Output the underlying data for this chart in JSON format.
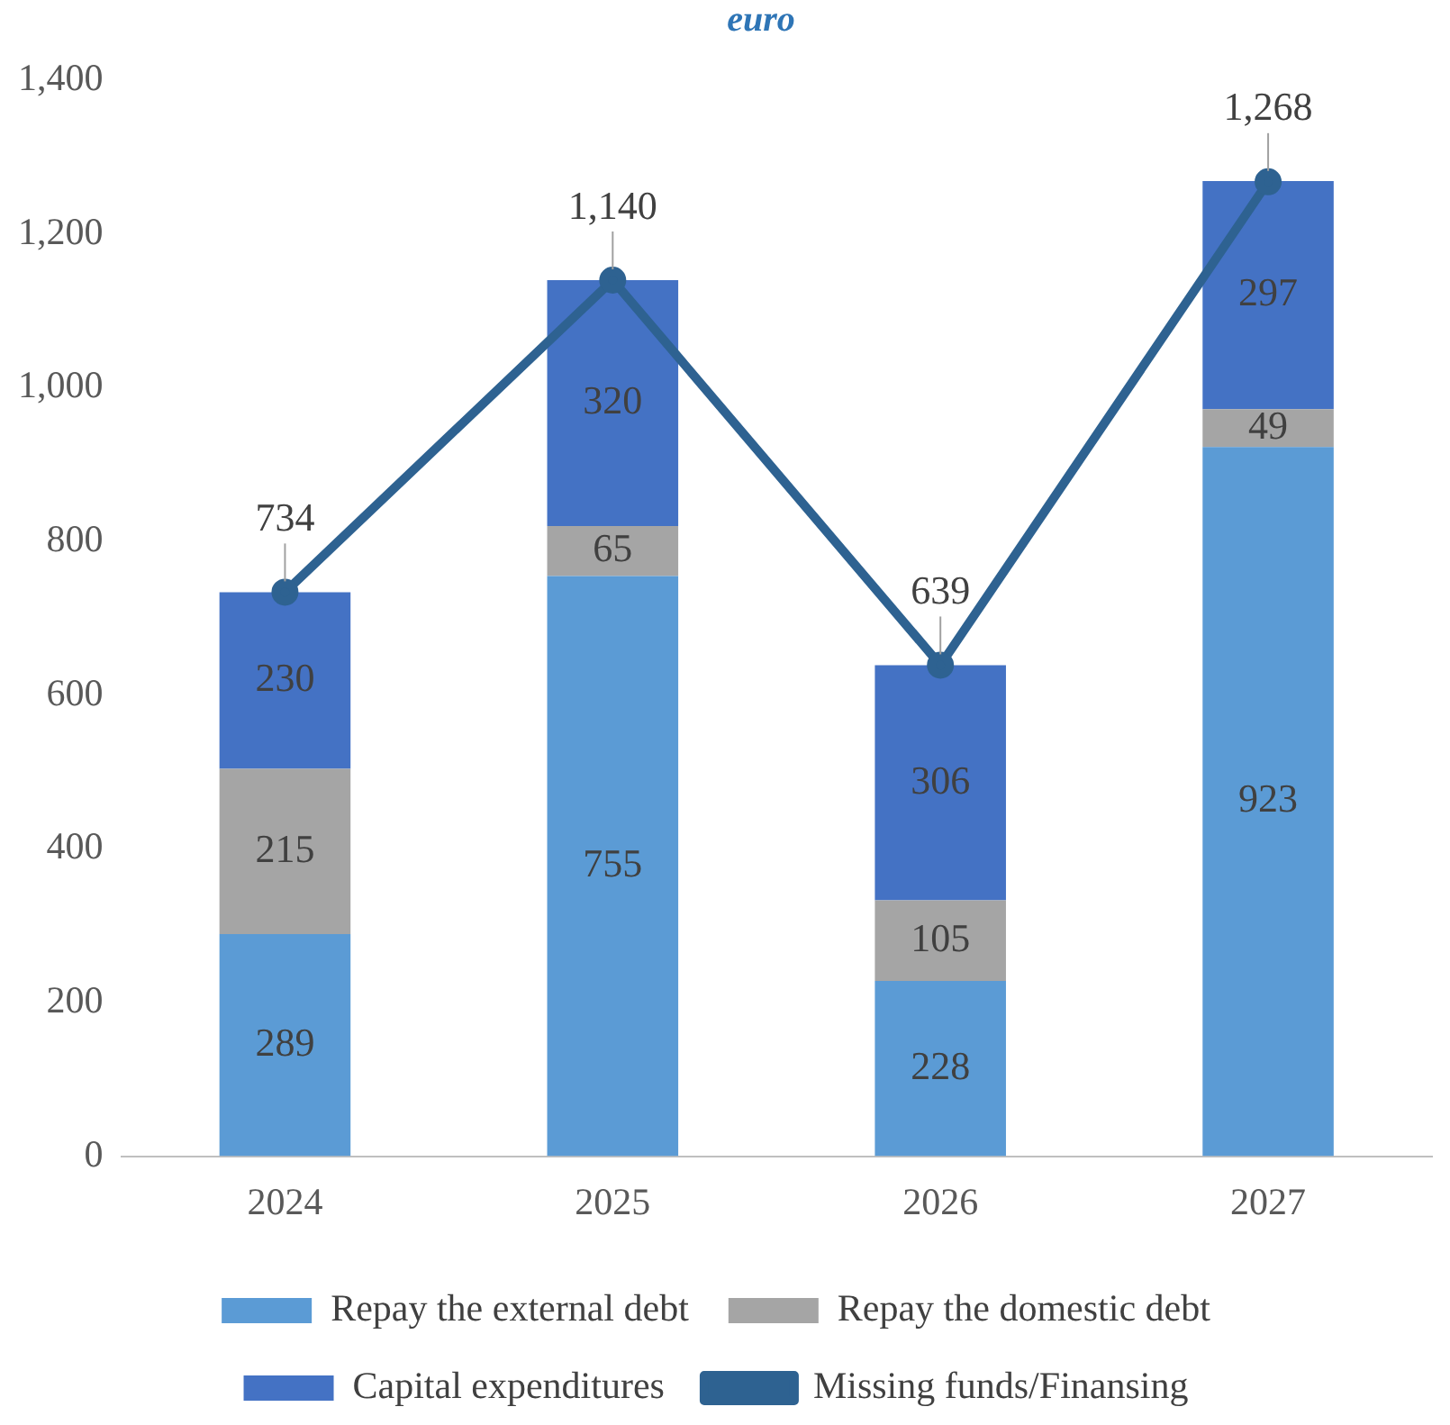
{
  "chart_data": {
    "type": "bar",
    "title": "euro",
    "stacked": true,
    "categories": [
      "2024",
      "2025",
      "2026",
      "2027"
    ],
    "series": [
      {
        "name": "Repay the external debt",
        "color": "#5b9bd5",
        "values": [
          289,
          755,
          228,
          923
        ],
        "value_labels": [
          "289",
          "755",
          "228",
          "923"
        ]
      },
      {
        "name": "Repay the domestic debt",
        "color": "#a5a5a5",
        "values": [
          215,
          65,
          105,
          49
        ],
        "value_labels": [
          "215",
          "65",
          "105",
          "49"
        ]
      },
      {
        "name": "Capital expenditures",
        "color": "#4472c4",
        "values": [
          230,
          320,
          306,
          297
        ],
        "value_labels": [
          "230",
          "320",
          "306",
          "297"
        ]
      },
      {
        "name": "Missing funds/Finansing",
        "type": "line",
        "color": "#2e6291",
        "values": [
          734,
          1140,
          639,
          1268
        ],
        "marker": "circle",
        "value_labels": [
          "734",
          "1,140",
          "639",
          "1,268"
        ]
      }
    ],
    "ylim": [
      0,
      1400
    ],
    "yticks": [
      {
        "value": 0,
        "label": "0"
      },
      {
        "value": 200,
        "label": "200"
      },
      {
        "value": 400,
        "label": "400"
      },
      {
        "value": 600,
        "label": "600"
      },
      {
        "value": 800,
        "label": "800"
      },
      {
        "value": 1000,
        "label": "1,000"
      },
      {
        "value": 1200,
        "label": "1,200"
      },
      {
        "value": 1400,
        "label": "1,400"
      }
    ],
    "grid": false,
    "legend": "bottom"
  }
}
